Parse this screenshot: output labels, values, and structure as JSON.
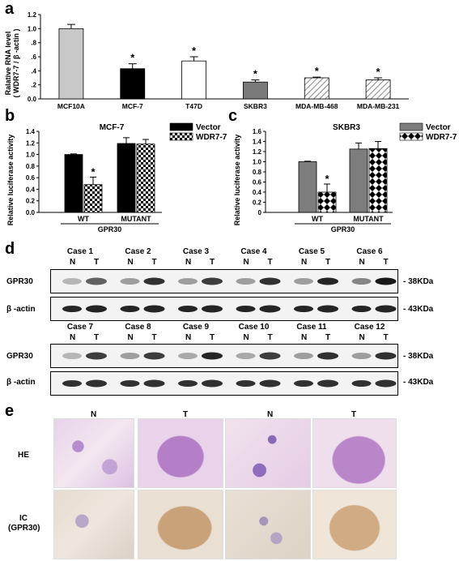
{
  "panels": {
    "a": "a",
    "b": "b",
    "c": "c",
    "d": "d",
    "e": "e"
  },
  "chart_data": [
    {
      "type": "bar",
      "panel": "a",
      "categories": [
        "MCF10A",
        "MCF-7",
        "T47D",
        "SKBR3",
        "MDA-MB-468",
        "MDA-MB-231"
      ],
      "values": [
        1.0,
        0.43,
        0.54,
        0.24,
        0.3,
        0.27
      ],
      "errors": [
        0.06,
        0.07,
        0.06,
        0.03,
        0.01,
        0.03
      ],
      "significant": [
        "",
        "*",
        "*",
        "*",
        "*",
        "*"
      ],
      "fills": [
        "light-gray",
        "black",
        "white",
        "dark-gray",
        "hatched",
        "hatched"
      ],
      "ylabel_line1": "Ralative RNA level",
      "ylabel_line2": "( WDR7-7 / β -actin )",
      "yticks": [
        "0.0",
        ".2",
        ".4",
        ".6",
        ".8",
        "1.0",
        "1.2"
      ],
      "ylim": [
        0,
        1.2
      ],
      "title": ""
    },
    {
      "type": "bar",
      "panel": "b",
      "title": "MCF-7",
      "groups": [
        "WT",
        "MUTANT"
      ],
      "group_caption": "GPR30",
      "series": [
        {
          "name": "Vector",
          "values": [
            1.0,
            1.19
          ],
          "errors": [
            0.01,
            0.1
          ],
          "fill": "black"
        },
        {
          "name": "WDR7-7",
          "values": [
            0.48,
            1.18
          ],
          "errors": [
            0.13,
            0.08
          ],
          "fill": "checker"
        }
      ],
      "significant": [
        [
          "",
          "*"
        ],
        [
          "",
          ""
        ]
      ],
      "ylabel": "Relative luciferase activity",
      "yticks": [
        "0.0",
        "0.2",
        "0.4",
        "0.6",
        "0.8",
        "1.0",
        "1.2",
        "1.4"
      ],
      "ylim": [
        0,
        1.4
      ]
    },
    {
      "type": "bar",
      "panel": "c",
      "title": "SKBR3",
      "groups": [
        "WT",
        "MUTANT"
      ],
      "group_caption": "GPR30",
      "series": [
        {
          "name": "Vector",
          "values": [
            1.0,
            1.25
          ],
          "errors": [
            0.01,
            0.12
          ],
          "fill": "gray"
        },
        {
          "name": "WDR7-7",
          "values": [
            0.4,
            1.26
          ],
          "errors": [
            0.16,
            0.14
          ],
          "fill": "diamond"
        }
      ],
      "significant": [
        [
          "",
          "*"
        ],
        [
          "",
          ""
        ]
      ],
      "ylabel": "Relative luciferase activity",
      "yticks": [
        "0",
        "0.2",
        "0.4",
        "0.6",
        "0.8",
        "1.0",
        "1.2",
        "1.4",
        "1.6"
      ],
      "ylim": [
        0,
        1.6
      ]
    }
  ],
  "blots": {
    "row1_cases": [
      "Case 1",
      "Case 2",
      "Case 3",
      "Case 4",
      "Case 5",
      "Case 6"
    ],
    "row2_cases": [
      "Case 7",
      "Case 8",
      "Case 9",
      "Case 10",
      "Case 11",
      "Case 12"
    ],
    "lane_n": "N",
    "lane_t": "T",
    "gpr30_label": "GPR30",
    "actin_label": "β -actin",
    "gpr30_kda": "- 38KDa",
    "actin_kda": "- 43KDa"
  },
  "histology": {
    "cols": [
      "N",
      "T",
      "N",
      "T"
    ],
    "row1_label": "HE",
    "row2_label_line1": "IC",
    "row2_label_line2": "(GPR30)"
  }
}
